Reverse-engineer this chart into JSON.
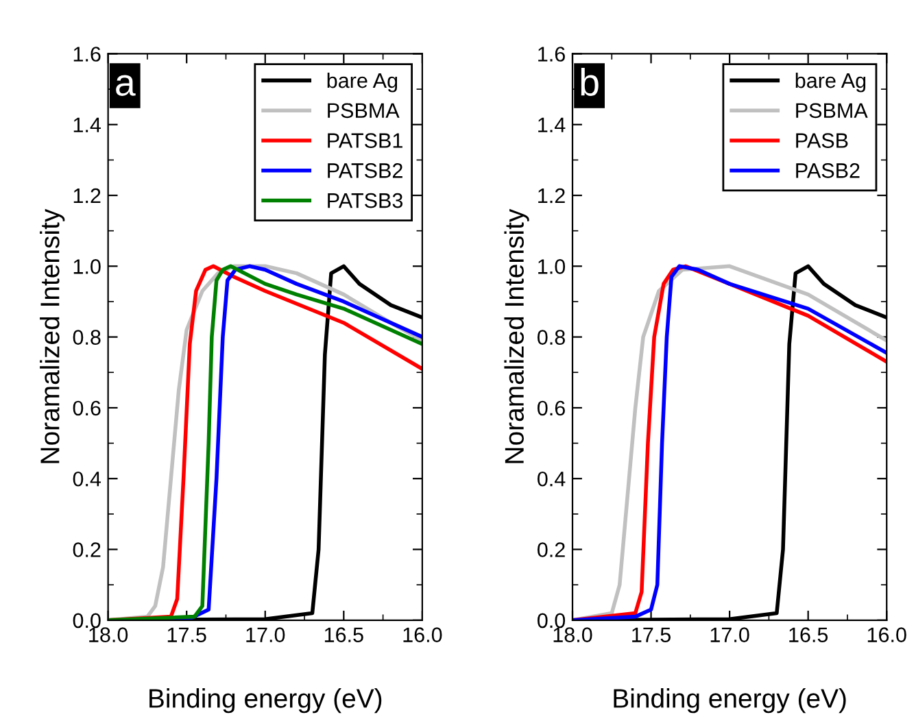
{
  "chart_data": [
    {
      "type": "line",
      "xlabel": "Binding energy (eV)",
      "ylabel": "Noramalized Intensity",
      "annotations": [
        "a"
      ],
      "xlim": [
        18.0,
        16.0
      ],
      "ylim": [
        0,
        1.6
      ],
      "xticks": [
        {
          "value": 18,
          "label": "18.0"
        },
        {
          "value": 17.5,
          "label": "17.5"
        },
        {
          "value": 17,
          "label": "17.0"
        },
        {
          "value": 16.5,
          "label": "16.5"
        },
        {
          "value": 16,
          "label": "16.0"
        }
      ],
      "yticks": [
        {
          "value": 0,
          "label": "0.0"
        },
        {
          "value": 0.2,
          "label": "0.2"
        },
        {
          "value": 0.4,
          "label": "0.4"
        },
        {
          "value": 0.6,
          "label": "0.6"
        },
        {
          "value": 0.8,
          "label": "0.8"
        },
        {
          "value": 1.0,
          "label": "1.0"
        },
        {
          "value": 1.2,
          "label": "1.2"
        },
        {
          "value": 1.4,
          "label": "1.4"
        },
        {
          "value": 1.6,
          "label": "1.6"
        }
      ],
      "legend": "top right",
      "grid": false,
      "marker": "none",
      "line_style": "solid",
      "series": [
        {
          "name": "bare Ag",
          "color": "#000000",
          "x": [
            18,
            17.0,
            16.7,
            16.66,
            16.62,
            16.58,
            16.5,
            16.4,
            16.2,
            16.0
          ],
          "values": [
            0,
            0.003,
            0.02,
            0.2,
            0.75,
            0.98,
            1.0,
            0.95,
            0.89,
            0.855
          ]
        },
        {
          "name": "PSBMA",
          "color": "#c0c0c0",
          "x": [
            18,
            17.75,
            17.7,
            17.65,
            17.6,
            17.55,
            17.5,
            17.4,
            17.3,
            17.2,
            17.0,
            16.8,
            16.5,
            16.2,
            16.0
          ],
          "values": [
            0,
            0.01,
            0.04,
            0.15,
            0.4,
            0.65,
            0.82,
            0.93,
            0.98,
            1.0,
            1.0,
            0.98,
            0.92,
            0.84,
            0.79
          ]
        },
        {
          "name": "PATSB1",
          "color": "#ff0000",
          "x": [
            18,
            17.6,
            17.56,
            17.52,
            17.48,
            17.44,
            17.38,
            17.33,
            17.2,
            17.0,
            16.5,
            16.0
          ],
          "values": [
            0,
            0.01,
            0.06,
            0.4,
            0.78,
            0.93,
            0.99,
            1.0,
            0.97,
            0.93,
            0.84,
            0.71
          ]
        },
        {
          "name": "PATSB2",
          "color": "#0000ff",
          "x": [
            18,
            17.5,
            17.36,
            17.31,
            17.27,
            17.24,
            17.19,
            17.1,
            17.0,
            16.8,
            16.5,
            16.0
          ],
          "values": [
            0,
            0.0,
            0.03,
            0.4,
            0.8,
            0.96,
            0.99,
            1.0,
            0.99,
            0.95,
            0.9,
            0.8
          ]
        },
        {
          "name": "PATSB3",
          "color": "#008000",
          "x": [
            18,
            17.45,
            17.4,
            17.36,
            17.34,
            17.31,
            17.27,
            17.22,
            17.0,
            16.8,
            16.5,
            16.0
          ],
          "values": [
            0,
            0.01,
            0.04,
            0.5,
            0.8,
            0.96,
            0.99,
            1.0,
            0.95,
            0.92,
            0.88,
            0.78
          ]
        }
      ]
    },
    {
      "type": "line",
      "xlabel": "Binding energy (eV)",
      "ylabel": "Noramalized Intensity",
      "annotations": [
        "b"
      ],
      "xlim": [
        18.0,
        16.0
      ],
      "ylim": [
        0,
        1.6
      ],
      "xticks": [
        {
          "value": 18,
          "label": "18.0"
        },
        {
          "value": 17.5,
          "label": "17.5"
        },
        {
          "value": 17,
          "label": "17.0"
        },
        {
          "value": 16.5,
          "label": "16.5"
        },
        {
          "value": 16,
          "label": "16.0"
        }
      ],
      "yticks": [
        {
          "value": 0,
          "label": "0.0"
        },
        {
          "value": 0.2,
          "label": "0.2"
        },
        {
          "value": 0.4,
          "label": "0.4"
        },
        {
          "value": 0.6,
          "label": "0.6"
        },
        {
          "value": 0.8,
          "label": "0.8"
        },
        {
          "value": 1.0,
          "label": "1.0"
        },
        {
          "value": 1.2,
          "label": "1.2"
        },
        {
          "value": 1.4,
          "label": "1.4"
        },
        {
          "value": 1.6,
          "label": "1.6"
        }
      ],
      "legend": "top right",
      "grid": false,
      "marker": "none",
      "line_style": "solid",
      "series": [
        {
          "name": "bare Ag",
          "color": "#000000",
          "x": [
            18,
            17.0,
            16.7,
            16.66,
            16.62,
            16.58,
            16.5,
            16.4,
            16.2,
            16.0
          ],
          "values": [
            0,
            0.003,
            0.02,
            0.2,
            0.78,
            0.98,
            1.0,
            0.95,
            0.89,
            0.855
          ]
        },
        {
          "name": "PSBMA",
          "color": "#c0c0c0",
          "x": [
            18,
            17.75,
            17.7,
            17.65,
            17.6,
            17.55,
            17.45,
            17.3,
            17.0,
            16.5,
            16.0
          ],
          "values": [
            0,
            0.02,
            0.1,
            0.35,
            0.6,
            0.8,
            0.93,
            0.99,
            1.0,
            0.92,
            0.79
          ]
        },
        {
          "name": "PASB",
          "color": "#ff0000",
          "x": [
            18,
            17.6,
            17.56,
            17.52,
            17.48,
            17.42,
            17.36,
            17.28,
            17.0,
            16.5,
            16.0
          ],
          "values": [
            0,
            0.02,
            0.08,
            0.5,
            0.8,
            0.95,
            0.99,
            1.0,
            0.95,
            0.86,
            0.73
          ]
        },
        {
          "name": "PASB2",
          "color": "#0000ff",
          "x": [
            18,
            17.6,
            17.5,
            17.46,
            17.43,
            17.4,
            17.37,
            17.32,
            17.2,
            17.0,
            16.5,
            16.0
          ],
          "values": [
            0,
            0.01,
            0.03,
            0.1,
            0.5,
            0.8,
            0.97,
            1.0,
            0.99,
            0.95,
            0.88,
            0.755
          ]
        }
      ]
    }
  ]
}
